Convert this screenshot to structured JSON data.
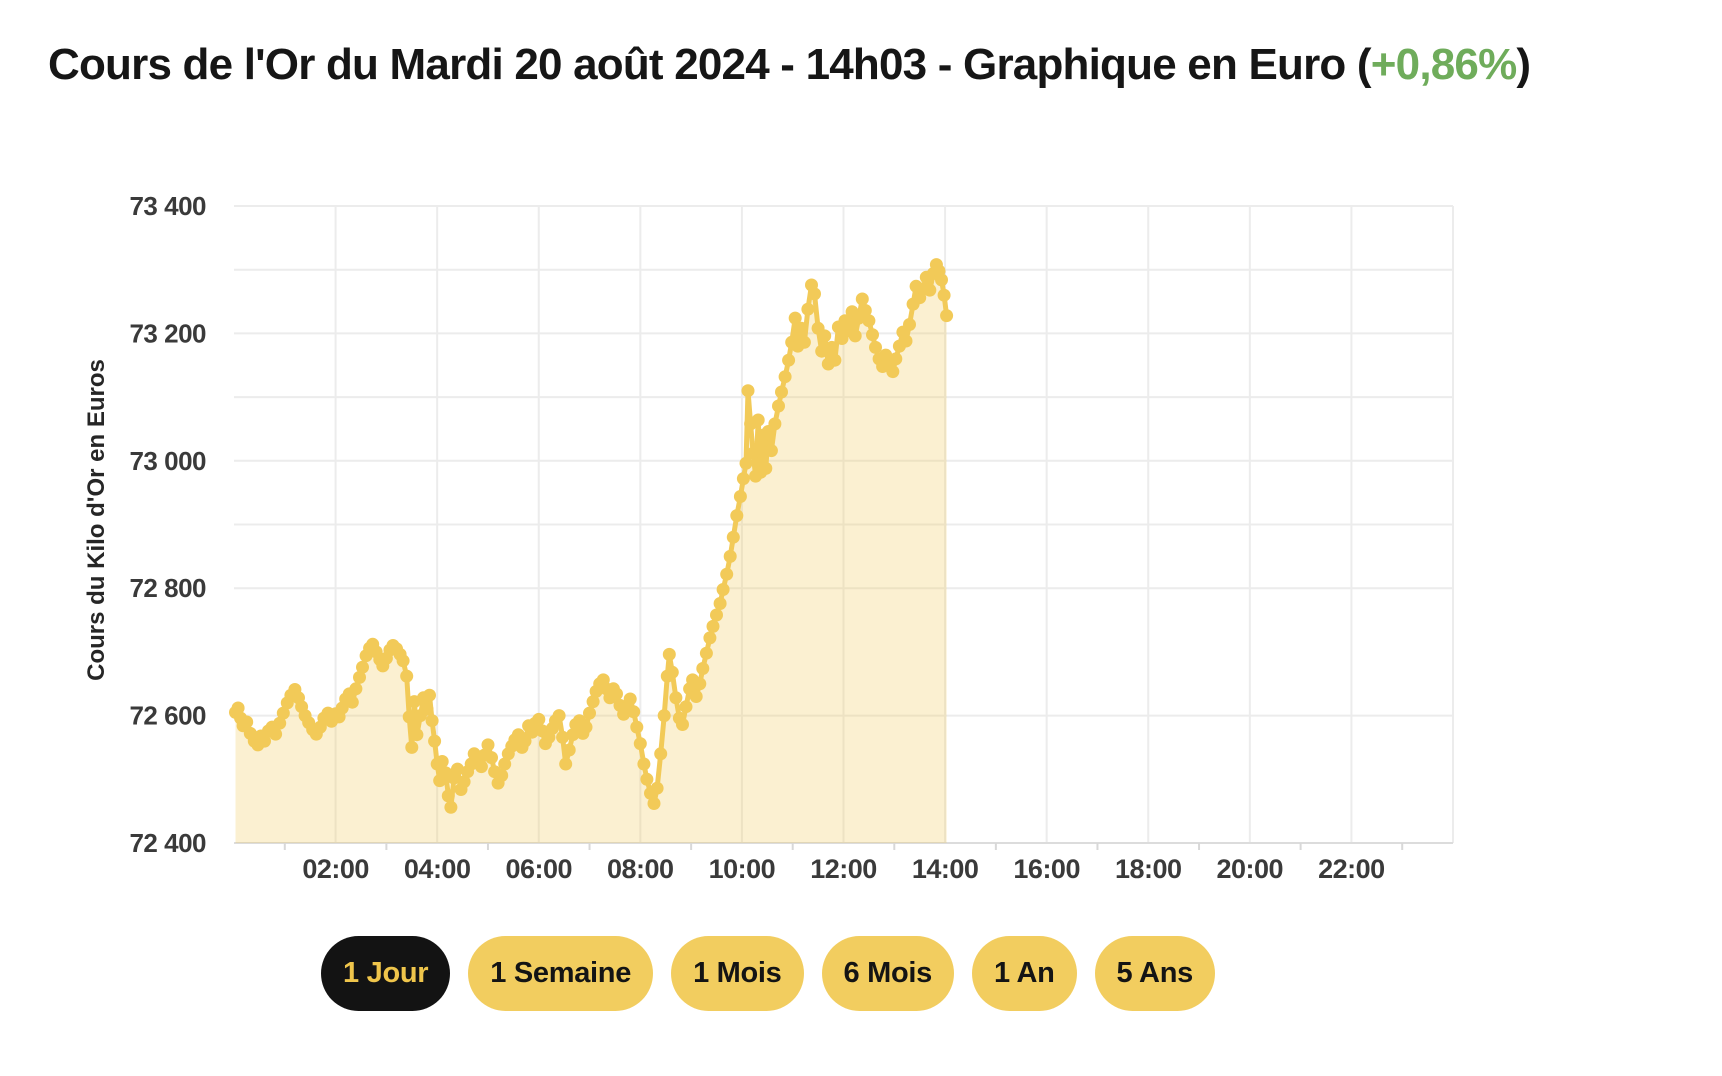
{
  "header": {
    "title_prefix": "Cours de l'Or du Mardi 20 août 2024 - 14h03 - Graphique en Euro (",
    "title_change": "+0,86%",
    "title_suffix": ")",
    "change_color": "#6FAC5B"
  },
  "chart_data": {
    "type": "line",
    "style": "scatter-line-area",
    "title": "Cours de l'Or du Mardi 20 août 2024 - 14h03 - Graphique en Euro (+0,86%)",
    "xlabel": "",
    "ylabel": "Cours du Kilo d'Or en Euros",
    "x_unit": "hours",
    "xlim": [
      0,
      24
    ],
    "ylim": [
      72400,
      73400
    ],
    "grid": true,
    "legend": false,
    "last_update_time": "14h03",
    "change_percent": "+0,86%",
    "x_ticks": [
      {
        "h": 2,
        "label": "02:00"
      },
      {
        "h": 4,
        "label": "04:00"
      },
      {
        "h": 6,
        "label": "06:00"
      },
      {
        "h": 8,
        "label": "08:00"
      },
      {
        "h": 10,
        "label": "10:00"
      },
      {
        "h": 12,
        "label": "12:00"
      },
      {
        "h": 14,
        "label": "14:00"
      },
      {
        "h": 16,
        "label": "16:00"
      },
      {
        "h": 18,
        "label": "18:00"
      },
      {
        "h": 20,
        "label": "20:00"
      },
      {
        "h": 22,
        "label": "22:00"
      }
    ],
    "y_ticks": [
      {
        "v": 73400,
        "label": "73 400"
      },
      {
        "v": 73200,
        "label": "73 200"
      },
      {
        "v": 73000,
        "label": "73 000"
      },
      {
        "v": 72800,
        "label": "72 800"
      },
      {
        "v": 72600,
        "label": "72 600"
      },
      {
        "v": 72400,
        "label": "72 400"
      }
    ],
    "hgridline_values": [
      73400,
      73300,
      73200,
      73100,
      73000,
      72900,
      72800,
      72600
    ],
    "colors": {
      "grid": "#ececec",
      "axis_line": "#dcdcdc",
      "tick": "#d8d8d8",
      "dot": "#F2CA58",
      "fill": "rgba(242,202,88,0.28)",
      "label_text": "#3a3a3a"
    },
    "series": [
      {
        "name": "Cours du Kilo d'Or en Euros",
        "color": "#F2CA58",
        "fill_color": "rgba(242,202,88,0.28)",
        "points": [
          [
            0.03,
            72605
          ],
          [
            0.08,
            72612
          ],
          [
            0.13,
            72596
          ],
          [
            0.18,
            72584
          ],
          [
            0.25,
            72590
          ],
          [
            0.32,
            72572
          ],
          [
            0.4,
            72560
          ],
          [
            0.47,
            72554
          ],
          [
            0.53,
            72568
          ],
          [
            0.6,
            72560
          ],
          [
            0.68,
            72576
          ],
          [
            0.75,
            72582
          ],
          [
            0.82,
            72571
          ],
          [
            0.9,
            72588
          ],
          [
            0.97,
            72604
          ],
          [
            1.05,
            72620
          ],
          [
            1.12,
            72632
          ],
          [
            1.2,
            72641
          ],
          [
            1.27,
            72628
          ],
          [
            1.33,
            72614
          ],
          [
            1.4,
            72600
          ],
          [
            1.47,
            72589
          ],
          [
            1.55,
            72578
          ],
          [
            1.62,
            72571
          ],
          [
            1.7,
            72582
          ],
          [
            1.77,
            72596
          ],
          [
            1.85,
            72604
          ],
          [
            1.92,
            72591
          ],
          [
            2.0,
            72603
          ],
          [
            2.07,
            72598
          ],
          [
            2.13,
            72612
          ],
          [
            2.2,
            72626
          ],
          [
            2.27,
            72634
          ],
          [
            2.33,
            72621
          ],
          [
            2.4,
            72642
          ],
          [
            2.47,
            72660
          ],
          [
            2.53,
            72676
          ],
          [
            2.6,
            72694
          ],
          [
            2.67,
            72706
          ],
          [
            2.73,
            72712
          ],
          [
            2.8,
            72700
          ],
          [
            2.87,
            72688
          ],
          [
            2.93,
            72678
          ],
          [
            3.0,
            72690
          ],
          [
            3.07,
            72703
          ],
          [
            3.13,
            72710
          ],
          [
            3.2,
            72705
          ],
          [
            3.27,
            72696
          ],
          [
            3.33,
            72686
          ],
          [
            3.4,
            72662
          ],
          [
            3.45,
            72598
          ],
          [
            3.5,
            72550
          ],
          [
            3.55,
            72622
          ],
          [
            3.6,
            72570
          ],
          [
            3.67,
            72600
          ],
          [
            3.73,
            72628
          ],
          [
            3.8,
            72610
          ],
          [
            3.85,
            72632
          ],
          [
            3.9,
            72592
          ],
          [
            3.95,
            72560
          ],
          [
            4.0,
            72524
          ],
          [
            4.05,
            72498
          ],
          [
            4.1,
            72528
          ],
          [
            4.17,
            72510
          ],
          [
            4.22,
            72474
          ],
          [
            4.27,
            72456
          ],
          [
            4.33,
            72502
          ],
          [
            4.4,
            72516
          ],
          [
            4.47,
            72484
          ],
          [
            4.53,
            72496
          ],
          [
            4.6,
            72512
          ],
          [
            4.67,
            72524
          ],
          [
            4.73,
            72540
          ],
          [
            4.8,
            72530
          ],
          [
            4.87,
            72520
          ],
          [
            4.93,
            72538
          ],
          [
            5.0,
            72554
          ],
          [
            5.07,
            72534
          ],
          [
            5.13,
            72512
          ],
          [
            5.2,
            72494
          ],
          [
            5.27,
            72506
          ],
          [
            5.33,
            72524
          ],
          [
            5.4,
            72540
          ],
          [
            5.47,
            72552
          ],
          [
            5.53,
            72562
          ],
          [
            5.6,
            72570
          ],
          [
            5.67,
            72550
          ],
          [
            5.73,
            72560
          ],
          [
            5.8,
            72584
          ],
          [
            5.87,
            72574
          ],
          [
            5.93,
            72588
          ],
          [
            6.0,
            72594
          ],
          [
            6.07,
            72576
          ],
          [
            6.13,
            72556
          ],
          [
            6.2,
            72566
          ],
          [
            6.27,
            72580
          ],
          [
            6.33,
            72592
          ],
          [
            6.4,
            72600
          ],
          [
            6.47,
            72566
          ],
          [
            6.53,
            72524
          ],
          [
            6.6,
            72546
          ],
          [
            6.67,
            72570
          ],
          [
            6.73,
            72586
          ],
          [
            6.8,
            72592
          ],
          [
            6.87,
            72572
          ],
          [
            6.93,
            72582
          ],
          [
            7.0,
            72604
          ],
          [
            7.07,
            72622
          ],
          [
            7.13,
            72638
          ],
          [
            7.2,
            72650
          ],
          [
            7.27,
            72656
          ],
          [
            7.33,
            72642
          ],
          [
            7.4,
            72628
          ],
          [
            7.47,
            72642
          ],
          [
            7.53,
            72634
          ],
          [
            7.6,
            72616
          ],
          [
            7.67,
            72602
          ],
          [
            7.73,
            72612
          ],
          [
            7.8,
            72626
          ],
          [
            7.87,
            72606
          ],
          [
            7.93,
            72582
          ],
          [
            8.0,
            72556
          ],
          [
            8.07,
            72524
          ],
          [
            8.13,
            72500
          ],
          [
            8.2,
            72478
          ],
          [
            8.27,
            72462
          ],
          [
            8.33,
            72486
          ],
          [
            8.4,
            72540
          ],
          [
            8.47,
            72600
          ],
          [
            8.53,
            72662
          ],
          [
            8.57,
            72696
          ],
          [
            8.63,
            72668
          ],
          [
            8.7,
            72628
          ],
          [
            8.77,
            72596
          ],
          [
            8.83,
            72586
          ],
          [
            8.9,
            72614
          ],
          [
            8.97,
            72642
          ],
          [
            9.03,
            72656
          ],
          [
            9.1,
            72630
          ],
          [
            9.17,
            72650
          ],
          [
            9.23,
            72674
          ],
          [
            9.3,
            72698
          ],
          [
            9.37,
            72722
          ],
          [
            9.43,
            72740
          ],
          [
            9.5,
            72758
          ],
          [
            9.57,
            72776
          ],
          [
            9.63,
            72798
          ],
          [
            9.7,
            72822
          ],
          [
            9.77,
            72850
          ],
          [
            9.83,
            72880
          ],
          [
            9.9,
            72914
          ],
          [
            9.97,
            72944
          ],
          [
            10.03,
            72972
          ],
          [
            10.08,
            72996
          ],
          [
            10.12,
            73110
          ],
          [
            10.17,
            73058
          ],
          [
            10.22,
            73012
          ],
          [
            10.27,
            72976
          ],
          [
            10.32,
            73064
          ],
          [
            10.37,
            72982
          ],
          [
            10.42,
            73040
          ],
          [
            10.47,
            72988
          ],
          [
            10.52,
            73046
          ],
          [
            10.58,
            73016
          ],
          [
            10.65,
            73058
          ],
          [
            10.72,
            73086
          ],
          [
            10.78,
            73108
          ],
          [
            10.85,
            73132
          ],
          [
            10.92,
            73158
          ],
          [
            10.98,
            73186
          ],
          [
            11.05,
            73224
          ],
          [
            11.1,
            73180
          ],
          [
            11.17,
            73208
          ],
          [
            11.23,
            73186
          ],
          [
            11.3,
            73238
          ],
          [
            11.37,
            73276
          ],
          [
            11.43,
            73262
          ],
          [
            11.5,
            73208
          ],
          [
            11.57,
            73172
          ],
          [
            11.63,
            73196
          ],
          [
            11.7,
            73152
          ],
          [
            11.77,
            73178
          ],
          [
            11.83,
            73158
          ],
          [
            11.9,
            73210
          ],
          [
            11.97,
            73192
          ],
          [
            12.03,
            73220
          ],
          [
            12.1,
            73204
          ],
          [
            12.17,
            73234
          ],
          [
            12.23,
            73196
          ],
          [
            12.3,
            73224
          ],
          [
            12.37,
            73254
          ],
          [
            12.43,
            73236
          ],
          [
            12.5,
            73220
          ],
          [
            12.57,
            73198
          ],
          [
            12.63,
            73178
          ],
          [
            12.7,
            73160
          ],
          [
            12.77,
            73148
          ],
          [
            12.83,
            73166
          ],
          [
            12.9,
            73152
          ],
          [
            12.97,
            73140
          ],
          [
            13.03,
            73160
          ],
          [
            13.1,
            73180
          ],
          [
            13.17,
            73202
          ],
          [
            13.23,
            73188
          ],
          [
            13.3,
            73214
          ],
          [
            13.37,
            73246
          ],
          [
            13.43,
            73274
          ],
          [
            13.5,
            73256
          ],
          [
            13.57,
            73270
          ],
          [
            13.63,
            73288
          ],
          [
            13.7,
            73268
          ],
          [
            13.77,
            73294
          ],
          [
            13.83,
            73308
          ],
          [
            13.88,
            73298
          ],
          [
            13.93,
            73284
          ],
          [
            13.98,
            73260
          ],
          [
            14.03,
            73228
          ]
        ]
      }
    ]
  },
  "controls": {
    "buttons": [
      {
        "label": "1 Jour",
        "active": true
      },
      {
        "label": "1 Semaine",
        "active": false
      },
      {
        "label": "1 Mois",
        "active": false
      },
      {
        "label": "6 Mois",
        "active": false
      },
      {
        "label": "1 An",
        "active": false
      },
      {
        "label": "5 Ans",
        "active": false
      }
    ]
  }
}
